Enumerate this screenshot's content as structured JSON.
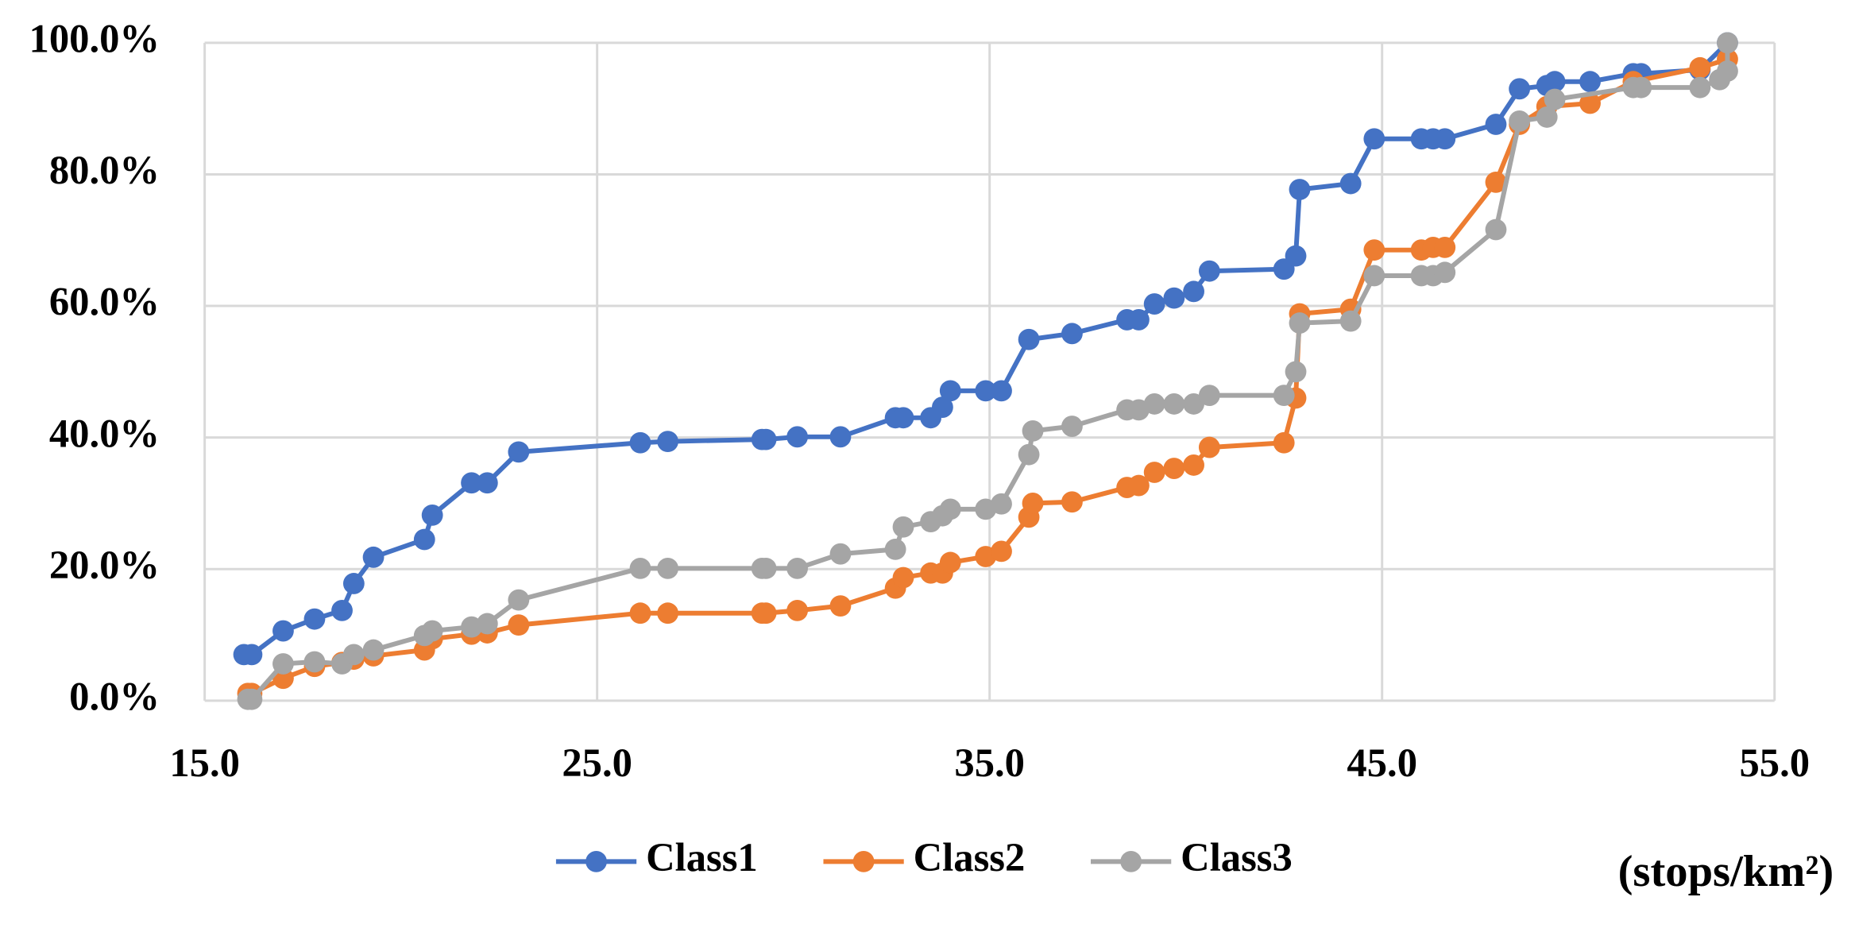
{
  "chart_data": {
    "type": "line",
    "x_label": "(stops/km²)",
    "grid": true,
    "legend": "bottom",
    "xlim": [
      15,
      55
    ],
    "xticks": [
      {
        "value": 15,
        "label": "15.0"
      },
      {
        "value": 25,
        "label": "25.0"
      },
      {
        "value": 35,
        "label": "35.0"
      },
      {
        "value": 45,
        "label": "45.0"
      },
      {
        "value": 55,
        "label": "55.0"
      }
    ],
    "ylim": [
      0,
      100
    ],
    "yticks": [
      {
        "value": 0,
        "label": "0.0%"
      },
      {
        "value": 20,
        "label": "20.0%"
      },
      {
        "value": 40,
        "label": "40.0%"
      },
      {
        "value": 60,
        "label": "60.0%"
      },
      {
        "value": 80,
        "label": "80.0%"
      },
      {
        "value": 100,
        "label": "100.0%"
      }
    ],
    "series": [
      {
        "name": "Class1",
        "color": "#4472c4",
        "x": [
          16.0,
          16.2,
          17.0,
          17.8,
          18.5,
          18.8,
          19.3,
          20.6,
          20.8,
          21.8,
          22.2,
          23.0,
          26.1,
          26.8,
          29.2,
          29.3,
          30.1,
          31.2,
          32.6,
          32.8,
          33.5,
          33.8,
          34.0,
          34.9,
          35.3,
          36.0,
          37.1,
          38.5,
          38.8,
          39.2,
          39.7,
          40.2,
          40.6,
          42.5,
          42.8,
          42.9,
          44.2,
          44.8,
          46.0,
          46.3,
          46.6,
          47.9,
          48.5,
          49.2,
          49.4,
          50.3,
          51.4,
          51.6,
          53.1,
          53.8
        ],
        "values": [
          7.0,
          7.0,
          10.6,
          12.4,
          13.7,
          17.8,
          21.8,
          24.5,
          28.2,
          33.1,
          33.1,
          37.8,
          39.2,
          39.4,
          39.7,
          39.7,
          40.1,
          40.1,
          43.0,
          43.0,
          43.0,
          44.6,
          47.1,
          47.1,
          47.1,
          54.9,
          55.8,
          57.9,
          57.9,
          60.3,
          61.2,
          62.2,
          65.3,
          65.6,
          67.6,
          77.7,
          78.6,
          85.4,
          85.4,
          85.4,
          85.4,
          87.6,
          93.0,
          93.5,
          94.1,
          94.1,
          95.3,
          95.3,
          95.9,
          100
        ]
      },
      {
        "name": "Class2",
        "color": "#ed7d31",
        "x": [
          16.1,
          16.2,
          17.0,
          17.8,
          18.5,
          18.8,
          19.3,
          20.6,
          20.8,
          21.8,
          22.2,
          23.0,
          26.1,
          26.8,
          29.2,
          29.3,
          30.1,
          31.2,
          32.6,
          32.8,
          33.5,
          33.8,
          34.0,
          34.9,
          35.3,
          36.0,
          36.1,
          37.1,
          38.5,
          38.8,
          39.2,
          39.7,
          40.2,
          40.6,
          42.5,
          42.8,
          42.9,
          44.2,
          44.8,
          46.0,
          46.3,
          46.6,
          47.9,
          48.5,
          49.2,
          50.3,
          51.4,
          53.1,
          53.8
        ],
        "values": [
          1.1,
          1.1,
          3.4,
          5.2,
          5.8,
          6.3,
          6.8,
          7.7,
          9.4,
          10.1,
          10.3,
          11.5,
          13.3,
          13.3,
          13.3,
          13.3,
          13.7,
          14.4,
          17.1,
          18.7,
          19.4,
          19.4,
          21.0,
          21.9,
          22.7,
          27.9,
          30.0,
          30.2,
          32.4,
          32.7,
          34.7,
          35.3,
          35.8,
          38.5,
          39.2,
          46.0,
          58.8,
          59.5,
          68.5,
          68.5,
          68.9,
          68.9,
          78.8,
          87.6,
          90.3,
          90.8,
          94.1,
          96.2,
          97.5
        ]
      },
      {
        "name": "Class3",
        "color": "#a5a5a5",
        "x": [
          16.1,
          16.2,
          17.0,
          17.8,
          18.5,
          18.8,
          19.3,
          20.6,
          20.8,
          21.8,
          22.2,
          23.0,
          26.1,
          26.8,
          29.2,
          29.3,
          30.1,
          31.2,
          32.6,
          32.8,
          33.5,
          33.8,
          34.0,
          34.9,
          35.3,
          36.0,
          36.1,
          37.1,
          38.5,
          38.8,
          39.2,
          39.7,
          40.2,
          40.6,
          42.5,
          42.8,
          42.9,
          44.2,
          44.8,
          46.0,
          46.3,
          46.6,
          47.9,
          48.5,
          49.2,
          49.4,
          51.4,
          51.6,
          53.1,
          53.6,
          53.8,
          53.8
        ],
        "values": [
          0.2,
          0.2,
          5.6,
          5.9,
          5.6,
          7.0,
          7.7,
          9.9,
          10.6,
          11.2,
          11.7,
          15.3,
          20.1,
          20.1,
          20.1,
          20.1,
          20.1,
          22.3,
          23.0,
          26.4,
          27.2,
          28.1,
          29.1,
          29.1,
          29.9,
          37.4,
          41.0,
          41.7,
          44.2,
          44.2,
          45.1,
          45.1,
          45.1,
          46.4,
          46.4,
          50.0,
          57.4,
          57.7,
          64.6,
          64.6,
          64.6,
          65.1,
          71.6,
          88.1,
          88.7,
          91.4,
          93.2,
          93.2,
          93.2,
          94.4,
          95.7,
          100
        ]
      }
    ]
  }
}
